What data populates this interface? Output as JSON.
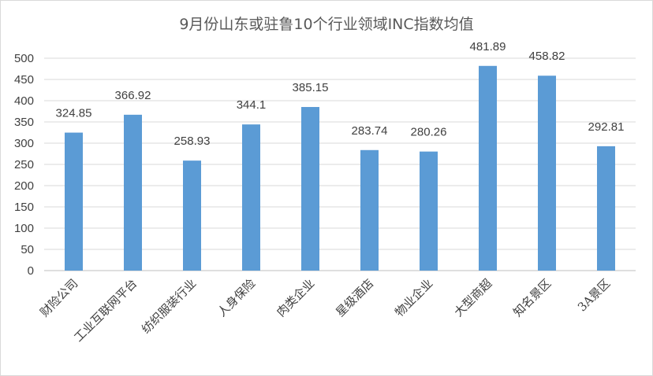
{
  "chart_data": {
    "type": "bar",
    "title": "9月份山东或驻鲁10个行业领域INC指数均值",
    "xlabel": "",
    "ylabel": "",
    "categories": [
      "财险公司",
      "工业互联网平台",
      "纺织服装行业",
      "人身保险",
      "肉类企业",
      "星级酒店",
      "物业企业",
      "大型商超",
      "知名景区",
      "3A景区"
    ],
    "values": [
      324.85,
      366.92,
      258.93,
      344.1,
      385.15,
      283.74,
      280.26,
      481.89,
      458.82,
      292.81
    ],
    "ylim": [
      0,
      500
    ],
    "yticks": [
      0,
      50,
      100,
      150,
      200,
      250,
      300,
      350,
      400,
      450,
      500
    ],
    "grid": true,
    "legend": "none",
    "bar_color": "#5b9bd5"
  }
}
